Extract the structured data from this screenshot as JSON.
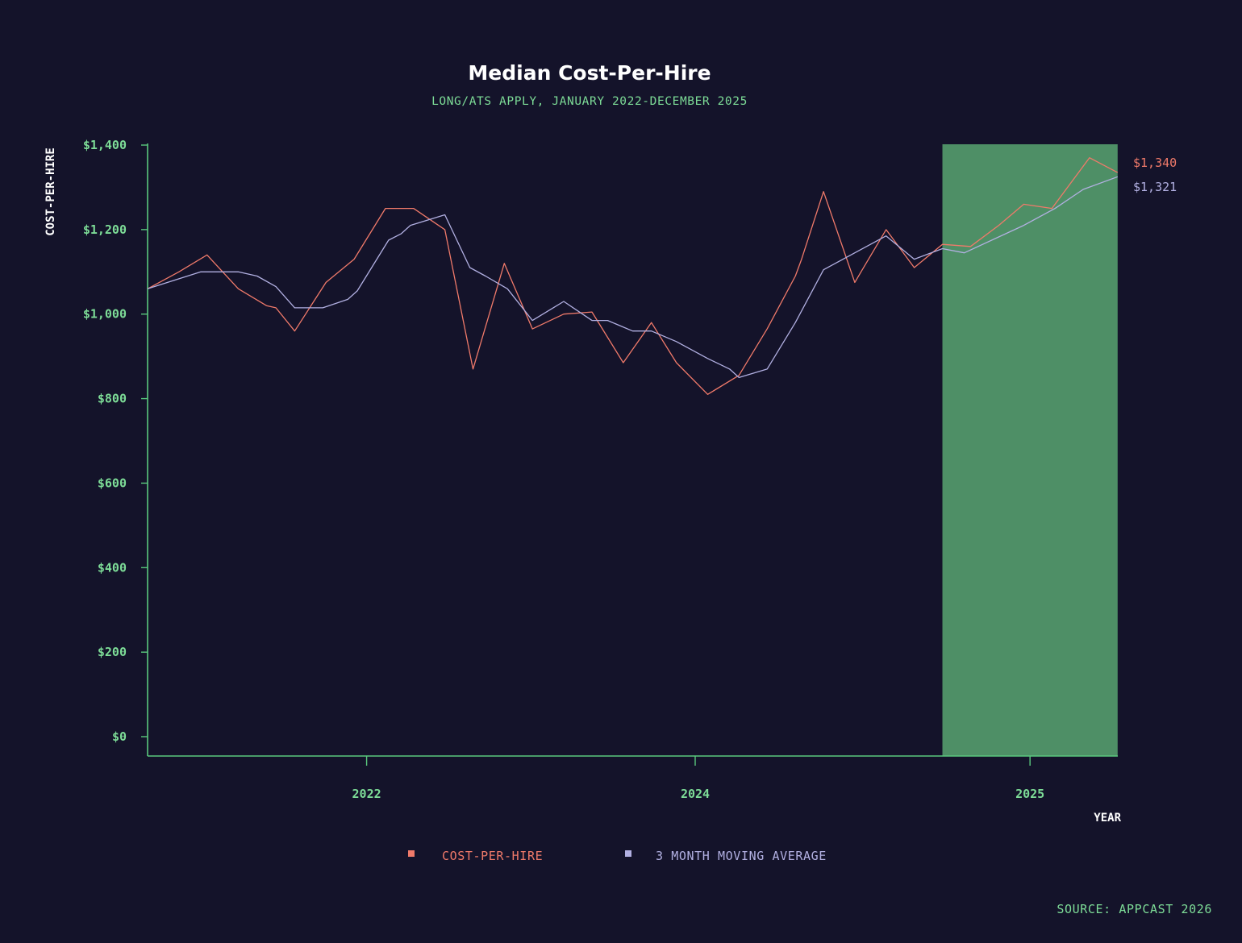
{
  "chart_data": {
    "type": "line",
    "title": "Median Cost-Per-Hire",
    "subtitle": "LONG/ATS APPLY, JANUARY 2022-DECEMBER 2025",
    "xlabel": "YEAR",
    "ylabel": "COST-PER-HIRE",
    "ylim": [
      0,
      1400
    ],
    "yticks": [
      0,
      200,
      400,
      600,
      800,
      1000,
      1200,
      1400
    ],
    "ytick_labels": [
      "$0",
      "$200",
      "$400",
      "$600",
      "$800",
      "$1,000",
      "$1,200",
      "$1,400"
    ],
    "xticks": [
      {
        "label": "2022",
        "x": 7
      },
      {
        "label": "2024",
        "x": 17.5
      },
      {
        "label": "2025",
        "x": 28.2
      }
    ],
    "xlim": [
      0,
      31
    ],
    "grid": false,
    "legend_position": "bottom-center",
    "highlight": {
      "x0": 25.4,
      "x1": 31,
      "color": "#4e8f66"
    },
    "series": [
      {
        "name": "COST-PER-HIRE",
        "color": "#f07a6a",
        "end_label": "$1,340",
        "points": [
          [
            0,
            1060
          ],
          [
            1,
            1100
          ],
          [
            1.9,
            1140
          ],
          [
            2.9,
            1060
          ],
          [
            3.8,
            1020
          ],
          [
            4.1,
            1015
          ],
          [
            4.7,
            960
          ],
          [
            5.7,
            1075
          ],
          [
            6.6,
            1130
          ],
          [
            7.6,
            1250
          ],
          [
            8.5,
            1250
          ],
          [
            9.5,
            1200
          ],
          [
            10.4,
            870
          ],
          [
            11.4,
            1120
          ],
          [
            12.3,
            965
          ],
          [
            13.3,
            1000
          ],
          [
            14.2,
            1005
          ],
          [
            15.2,
            885
          ],
          [
            16.1,
            980
          ],
          [
            16.9,
            885
          ],
          [
            17.9,
            810
          ],
          [
            18.9,
            855
          ],
          [
            19.8,
            965
          ],
          [
            20.7,
            1090
          ],
          [
            20.9,
            1130
          ],
          [
            21.6,
            1290
          ],
          [
            22.6,
            1075
          ],
          [
            22.8,
            1100
          ],
          [
            23.6,
            1200
          ],
          [
            24.5,
            1110
          ],
          [
            25.4,
            1165
          ],
          [
            26.3,
            1160
          ],
          [
            27.2,
            1210
          ],
          [
            28,
            1260
          ],
          [
            28.9,
            1250
          ],
          [
            30.1,
            1370
          ],
          [
            31,
            1335
          ]
        ]
      },
      {
        "name": "3 MONTH MOVING AVERAGE",
        "color": "#b2b0e2",
        "end_label": "$1,321",
        "points": [
          [
            0,
            1060
          ],
          [
            1.7,
            1100
          ],
          [
            2.9,
            1100
          ],
          [
            3.5,
            1090
          ],
          [
            4.1,
            1065
          ],
          [
            4.7,
            1015
          ],
          [
            5.6,
            1015
          ],
          [
            6.4,
            1035
          ],
          [
            6.7,
            1055
          ],
          [
            7.7,
            1175
          ],
          [
            8.1,
            1190
          ],
          [
            8.4,
            1210
          ],
          [
            9.5,
            1235
          ],
          [
            10.3,
            1110
          ],
          [
            10.8,
            1090
          ],
          [
            11.5,
            1060
          ],
          [
            12.3,
            985
          ],
          [
            13.3,
            1030
          ],
          [
            14.2,
            985
          ],
          [
            14.7,
            985
          ],
          [
            15.5,
            960
          ],
          [
            16.1,
            960
          ],
          [
            16.9,
            935
          ],
          [
            17.9,
            895
          ],
          [
            18.6,
            870
          ],
          [
            18.9,
            850
          ],
          [
            19.8,
            870
          ],
          [
            20.7,
            980
          ],
          [
            21.6,
            1105
          ],
          [
            23.6,
            1185
          ],
          [
            24.5,
            1130
          ],
          [
            25.4,
            1155
          ],
          [
            26.1,
            1145
          ],
          [
            28,
            1210
          ],
          [
            29,
            1250
          ],
          [
            29.9,
            1295
          ],
          [
            31,
            1325
          ]
        ]
      }
    ]
  },
  "source": "SOURCE: APPCAST 2026",
  "colors": {
    "background": "#14132a",
    "axis": "#5ac97e",
    "accent_text": "#7ddc97",
    "highlight": "#4e8f66"
  }
}
